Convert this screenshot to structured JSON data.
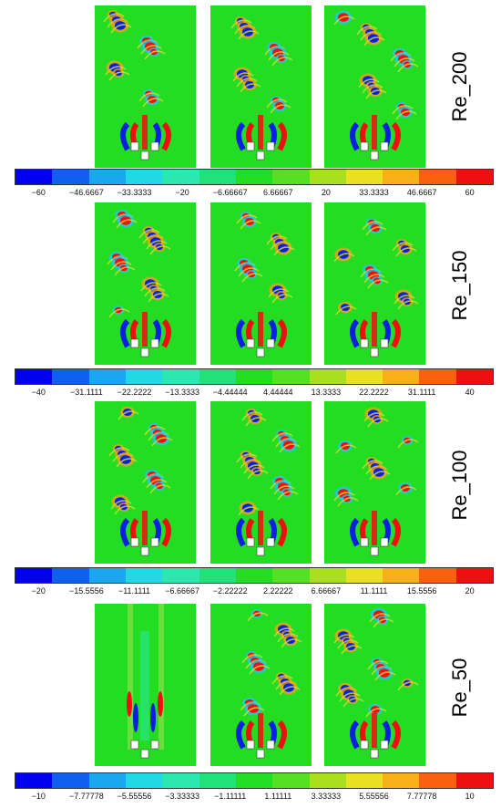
{
  "field_color": "#22dd22",
  "rows": [
    {
      "label": "Re_200",
      "ticks": [
        "−60",
        "−46.6667",
        "−33.3333",
        "−20",
        "−6.66667",
        "6.66667",
        "20",
        "33.3333",
        "46.6667",
        "60"
      ]
    },
    {
      "label": "Re_150",
      "ticks": [
        "−40",
        "−31.1111",
        "−22.2222",
        "−13.3333",
        "−4.44444",
        "4.44444",
        "13.3333",
        "22.2222",
        "31.1111",
        "40"
      ]
    },
    {
      "label": "Re_100",
      "ticks": [
        "−20",
        "−15.5556",
        "−11.1111",
        "−6.66667",
        "−2.22222",
        "2.22222",
        "6.66667",
        "11.1111",
        "15.5556",
        "20"
      ]
    },
    {
      "label": "Re_50",
      "ticks": [
        "−10",
        "−7.77778",
        "−5.55556",
        "−3.33333",
        "−1.11111",
        "1.11111",
        "3.33333",
        "5.55556",
        "7.77778",
        "10"
      ]
    }
  ],
  "colormap": [
    "#0000ee",
    "#1060f0",
    "#19a7f0",
    "#22d7e6",
    "#2ae8b0",
    "#22e07a",
    "#22dd22",
    "#55e022",
    "#a8e020",
    "#e8e020",
    "#f8b018",
    "#f86010",
    "#ee1010"
  ]
}
